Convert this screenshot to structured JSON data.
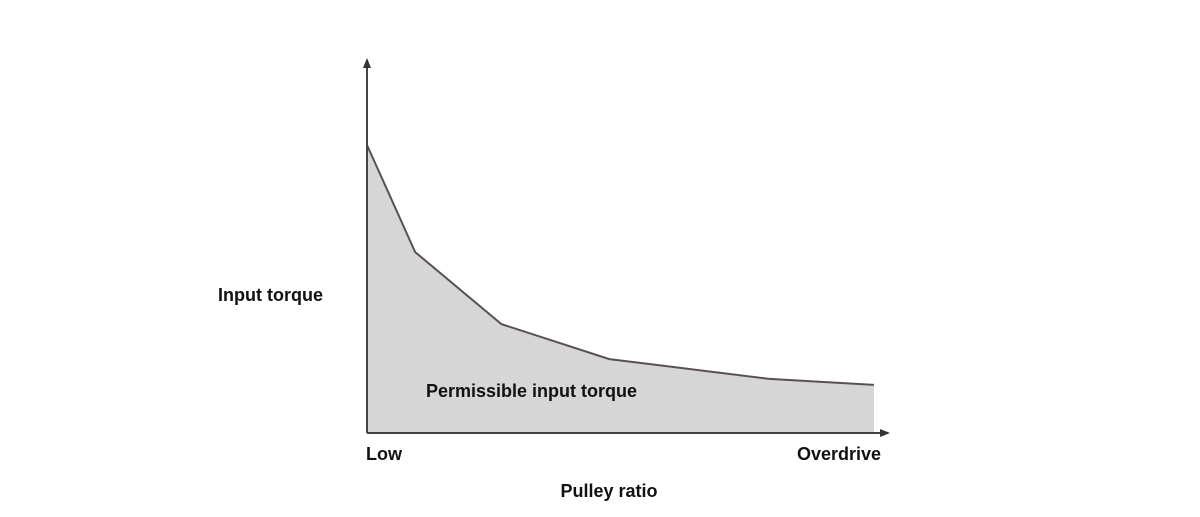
{
  "chart_data": {
    "type": "area",
    "title": "",
    "xlabel": "Pulley ratio",
    "ylabel": "Input torque",
    "x_tick_labels": [
      "Low",
      "Overdrive"
    ],
    "annotation": "Permissible input torque",
    "xlim": [
      0,
      100
    ],
    "ylim": [
      0,
      100
    ],
    "grid": false,
    "series": [
      {
        "name": "Permissible input torque",
        "x": [
          0,
          9.5,
          26.5,
          47.8,
          79.4,
          100
        ],
        "y": [
          77.2,
          48.5,
          29.2,
          19.8,
          14.5,
          12.9
        ]
      }
    ],
    "colors": {
      "fill": "#d6d6d6",
      "line": "#5a5050",
      "axis": "#444444"
    }
  }
}
